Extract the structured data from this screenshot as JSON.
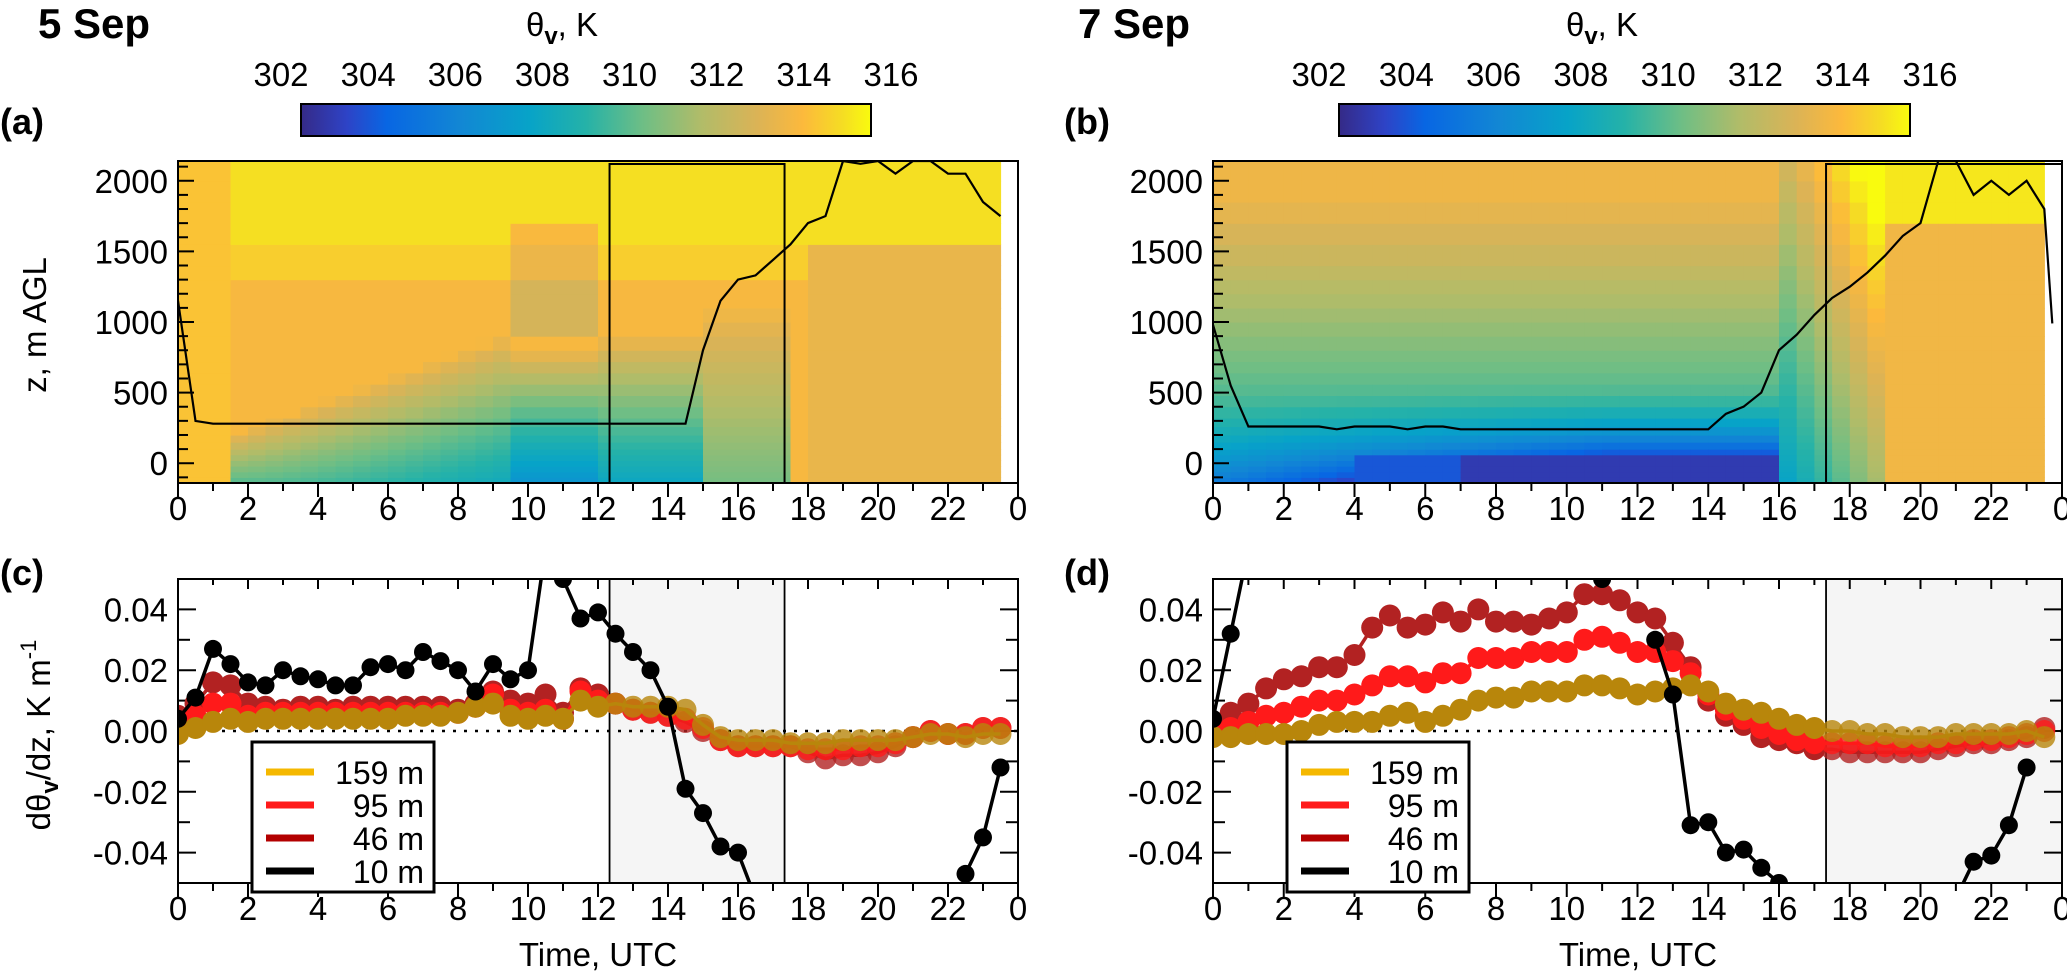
{
  "figure": {
    "left_title": "5 Sep",
    "right_title": "7 Sep",
    "colorbar_label_base": "θ",
    "colorbar_label_sub": "v",
    "colorbar_label_rest": ", K",
    "colorbar_ticks": [
      "302",
      "304",
      "306",
      "308",
      "310",
      "312",
      "314",
      "316"
    ],
    "panel_labels": [
      "(a)",
      "(b)",
      "(c)",
      "(d)"
    ],
    "top_ylabel": "z, m AGL",
    "bottom_ylabel_base": "dθ",
    "bottom_ylabel_sub": "v",
    "bottom_ylabel_rest": "/dz, K m",
    "bottom_ylabel_sup": "-1",
    "xlabel": "Time, UTC",
    "x_ticks": [
      "0",
      "2",
      "4",
      "6",
      "8",
      "10",
      "12",
      "14",
      "16",
      "18",
      "20",
      "22",
      "0"
    ],
    "z_ticks": [
      "0",
      "500",
      "1000",
      "1500",
      "2000"
    ],
    "grad_ticks": [
      "0.04",
      "0.02",
      "0.00",
      "-0.02",
      "-0.04"
    ],
    "legend": [
      {
        "label": "159 m",
        "color": "#f5b800"
      },
      {
        "label": "95 m",
        "color": "#ff1a1a"
      },
      {
        "label": "46 m",
        "color": "#b30000"
      },
      {
        "label": "10 m",
        "color": "#000000"
      }
    ]
  },
  "chart_data": [
    {
      "id": "a",
      "type": "heatmap",
      "title": "5 Sep",
      "xlabel": "",
      "ylabel": "z, m AGL",
      "colorbar": {
        "label": "θv, K",
        "range": [
          302,
          316
        ]
      },
      "xlim": [
        0,
        24
      ],
      "ylim": [
        -140,
        2140
      ],
      "highlight_box_hours": [
        12.33,
        17.33
      ],
      "boundary_layer_height": {
        "x": [
          0,
          0.5,
          1,
          1.5,
          2,
          3,
          4,
          5,
          6,
          7,
          8,
          9,
          10,
          11,
          12,
          13,
          14,
          14.5,
          15,
          15.5,
          16,
          16.5,
          17,
          17.5,
          18,
          18.5,
          19,
          19.5,
          20,
          20.5,
          21,
          21.5,
          22,
          22.5,
          23,
          23.5
        ],
        "z": [
          1150,
          300,
          280,
          280,
          280,
          280,
          280,
          280,
          280,
          280,
          280,
          280,
          280,
          280,
          280,
          280,
          280,
          280,
          800,
          1150,
          1300,
          1330,
          1440,
          1550,
          1700,
          1750,
          2140,
          2120,
          2140,
          2050,
          2140,
          2140,
          2050,
          2050,
          1850,
          1750
        ]
      },
      "field_description": "warm (314-316 K) aloft and at night; cool (307-309 K) near-surface mixing region 10-15 UTC"
    },
    {
      "id": "b",
      "type": "heatmap",
      "title": "7 Sep",
      "xlabel": "",
      "ylabel": "",
      "colorbar": {
        "label": "θv, K",
        "range": [
          302,
          316
        ]
      },
      "xlim": [
        0,
        24
      ],
      "ylim": [
        -140,
        2140
      ],
      "highlight_box_hours": [
        17.33,
        24
      ],
      "boundary_layer_height": {
        "x": [
          0,
          0.5,
          1,
          2,
          3,
          3.5,
          4,
          5,
          5.5,
          6,
          6.5,
          7,
          8,
          9,
          10,
          11,
          12,
          13,
          14,
          14.5,
          15,
          15.5,
          16,
          16.5,
          17,
          17.5,
          18,
          18.5,
          19,
          19.5,
          20,
          20.5,
          21,
          21.5,
          22,
          22.5,
          23,
          23.5
        ],
        "z": [
          980,
          550,
          260,
          260,
          260,
          240,
          260,
          260,
          240,
          260,
          260,
          240,
          240,
          240,
          240,
          240,
          240,
          240,
          240,
          350,
          400,
          500,
          800,
          910,
          1050,
          1170,
          1250,
          1350,
          1470,
          1610,
          1700,
          2140,
          2140,
          1900,
          2000,
          1900,
          2000,
          1800
        ],
        "z_end": 990
      },
      "field_description": "cool stable surface layer (302-304 K) 4-15 UTC; warm (313-316 K) aloft and late day"
    },
    {
      "id": "c",
      "type": "line",
      "title": "",
      "xlabel": "Time, UTC",
      "ylabel": "dθv/dz, K m-1",
      "xlim": [
        0,
        24
      ],
      "ylim": [
        -0.05,
        0.05
      ],
      "shaded_hours": [
        12.33,
        17.33
      ],
      "zero_line": "dotted",
      "legend_position": "bottom-left",
      "x": [
        0,
        0.5,
        1,
        1.5,
        2,
        2.5,
        3,
        3.5,
        4,
        4.5,
        5,
        5.5,
        6,
        6.5,
        7,
        7.5,
        8,
        8.5,
        9,
        9.5,
        10,
        10.5,
        11,
        11.5,
        12,
        12.5,
        13,
        13.5,
        14,
        14.5,
        15,
        15.5,
        16,
        16.5,
        17,
        17.5,
        18,
        18.5,
        19,
        19.5,
        20,
        20.5,
        21,
        21.5,
        22,
        22.5,
        23,
        23.5
      ],
      "series": [
        {
          "name": "159 m",
          "values": [
            -0.001,
            0.001,
            0.003,
            0.004,
            0.003,
            0.004,
            0.004,
            0.004,
            0.004,
            0.004,
            0.004,
            0.004,
            0.004,
            0.005,
            0.005,
            0.005,
            0.006,
            0.008,
            0.009,
            0.005,
            0.004,
            0.005,
            0.004,
            0.01,
            0.008,
            0.009,
            0.008,
            0.008,
            0.008,
            0.007,
            0.002,
            -0.002,
            -0.003,
            -0.003,
            -0.003,
            -0.004,
            -0.004,
            -0.004,
            -0.003,
            -0.003,
            -0.003,
            -0.003,
            -0.002,
            -0.001,
            -0.001,
            -0.002,
            -0.001,
            -0.001
          ]
        },
        {
          "name": "95 m",
          "values": [
            0.002,
            0.005,
            0.009,
            0.009,
            0.005,
            0.006,
            0.006,
            0.006,
            0.006,
            0.006,
            0.006,
            0.006,
            0.006,
            0.006,
            0.006,
            0.006,
            0.006,
            0.008,
            0.012,
            0.007,
            0.006,
            0.007,
            0.004,
            0.013,
            0.01,
            0.009,
            0.007,
            0.006,
            0.005,
            0.004,
            0.001,
            -0.003,
            -0.005,
            -0.005,
            -0.005,
            -0.005,
            -0.006,
            -0.006,
            -0.006,
            -0.005,
            -0.005,
            -0.004,
            -0.002,
            0,
            -0.001,
            -0.001,
            0.001,
            0.001
          ]
        },
        {
          "name": "46 m",
          "values": [
            0.005,
            0.009,
            0.016,
            0.015,
            0.009,
            0.008,
            0.007,
            0.008,
            0.008,
            0.007,
            0.008,
            0.008,
            0.008,
            0.008,
            0.008,
            0.008,
            0.007,
            0.009,
            0.013,
            0.01,
            0.009,
            0.012,
            0.006,
            0.014,
            0.012,
            0.009,
            0.007,
            0.006,
            0.005,
            0.003,
            0.0,
            -0.003,
            -0.005,
            -0.005,
            -0.005,
            -0.005,
            -0.007,
            -0.009,
            -0.008,
            -0.008,
            -0.007,
            -0.005,
            -0.002,
            0,
            -0.001,
            -0.001,
            0.001,
            0.001
          ]
        },
        {
          "name": "10 m",
          "values": [
            0.004,
            0.011,
            0.027,
            0.022,
            0.016,
            0.015,
            0.02,
            0.018,
            0.017,
            0.015,
            0.015,
            0.021,
            0.022,
            0.02,
            0.026,
            0.023,
            0.02,
            0.013,
            0.022,
            0.017,
            0.02,
            0.06,
            0.05,
            0.037,
            0.039,
            0.032,
            0.026,
            0.02,
            0.008,
            -0.019,
            -0.027,
            -0.038,
            -0.04,
            -0.055,
            null,
            null,
            null,
            null,
            null,
            null,
            null,
            null,
            null,
            null,
            null,
            -0.047,
            -0.035,
            -0.012
          ]
        }
      ]
    },
    {
      "id": "d",
      "type": "line",
      "title": "",
      "xlabel": "Time, UTC",
      "ylabel": "",
      "xlim": [
        0,
        24
      ],
      "ylim": [
        -0.05,
        0.05
      ],
      "shaded_hours": [
        17.33,
        24
      ],
      "zero_line": "dotted",
      "legend_position": "bottom-left",
      "x": [
        0,
        0.5,
        1,
        1.5,
        2,
        2.5,
        3,
        3.5,
        4,
        4.5,
        5,
        5.5,
        6,
        6.5,
        7,
        7.5,
        8,
        8.5,
        9,
        9.5,
        10,
        10.5,
        11,
        11.5,
        12,
        12.5,
        13,
        13.5,
        14,
        14.5,
        15,
        15.5,
        16,
        16.5,
        17,
        17.5,
        18,
        18.5,
        19,
        19.5,
        20,
        20.5,
        21,
        21.5,
        22,
        22.5,
        23,
        23.5
      ],
      "series": [
        {
          "name": "159 m",
          "values": [
            -0.002,
            -0.002,
            -0.001,
            -0.001,
            -0.001,
            0,
            0.002,
            0.003,
            0.003,
            0.003,
            0.005,
            0.006,
            0.003,
            0.005,
            0.007,
            0.01,
            0.011,
            0.011,
            0.013,
            0.013,
            0.013,
            0.015,
            0.015,
            0.014,
            0.012,
            0.013,
            0.014,
            0.015,
            0.013,
            0.009,
            0.007,
            0.006,
            0.004,
            0.002,
            0.001,
            0,
            0,
            -0.001,
            -0.001,
            -0.002,
            -0.002,
            -0.002,
            -0.001,
            -0.001,
            -0.001,
            -0.001,
            0,
            -0.002
          ]
        },
        {
          "name": "95 m",
          "values": [
            0,
            0.001,
            0.003,
            0.005,
            0.006,
            0.008,
            0.01,
            0.01,
            0.012,
            0.015,
            0.018,
            0.018,
            0.016,
            0.019,
            0.019,
            0.024,
            0.024,
            0.024,
            0.026,
            0.026,
            0.026,
            0.03,
            0.031,
            0.029,
            0.026,
            0.026,
            0.023,
            0.019,
            0.012,
            0.007,
            0.004,
            0.001,
            -0.001,
            -0.003,
            -0.004,
            -0.004,
            -0.004,
            -0.004,
            -0.005,
            -0.005,
            -0.005,
            -0.004,
            -0.004,
            -0.003,
            -0.003,
            -0.002,
            -0.001,
            0
          ]
        },
        {
          "name": "46 m",
          "values": [
            0.003,
            0.006,
            0.009,
            0.014,
            0.017,
            0.018,
            0.021,
            0.021,
            0.025,
            0.034,
            0.038,
            0.034,
            0.035,
            0.039,
            0.036,
            0.04,
            0.036,
            0.036,
            0.035,
            0.037,
            0.039,
            0.045,
            0.045,
            0.043,
            0.039,
            0.037,
            0.029,
            0.021,
            0.01,
            0.005,
            0.002,
            -0.002,
            -0.003,
            -0.004,
            -0.006,
            -0.006,
            -0.007,
            -0.007,
            -0.007,
            -0.007,
            -0.007,
            -0.006,
            -0.005,
            -0.004,
            -0.004,
            -0.003,
            -0.002,
            0.001
          ]
        },
        {
          "name": "10 m",
          "values": [
            0.004,
            0.032,
            0.06,
            null,
            null,
            null,
            null,
            null,
            null,
            null,
            null,
            null,
            null,
            null,
            null,
            null,
            null,
            null,
            null,
            null,
            null,
            null,
            0.05,
            0.06,
            null,
            0.03,
            0.012,
            -0.031,
            -0.03,
            -0.04,
            -0.039,
            -0.045,
            -0.05,
            -0.055,
            null,
            null,
            null,
            null,
            null,
            null,
            null,
            null,
            -0.055,
            -0.043,
            -0.041,
            -0.031,
            -0.012,
            null
          ]
        }
      ]
    }
  ]
}
